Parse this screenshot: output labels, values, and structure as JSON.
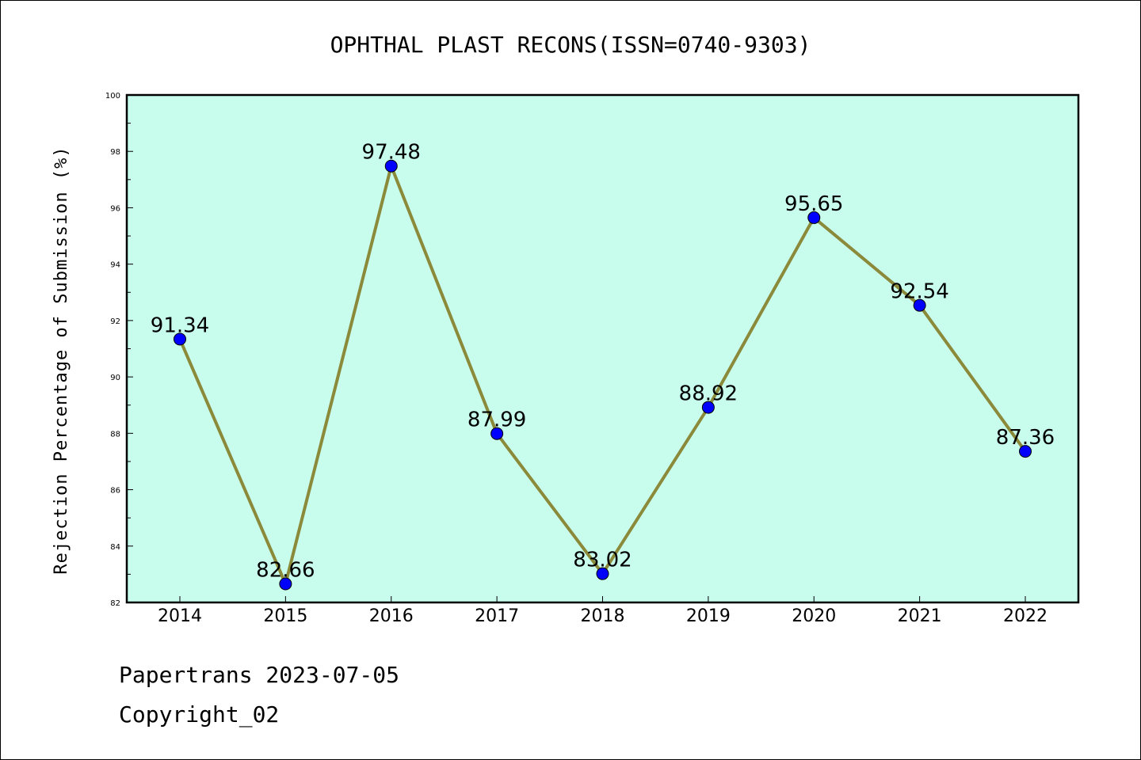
{
  "chart_data": {
    "type": "line",
    "title": "OPHTHAL PLAST RECONS(ISSN=0740-9303)",
    "xlabel": "",
    "ylabel": "Rejection Percentage of Submission (%)",
    "categories": [
      "2014",
      "2015",
      "2016",
      "2017",
      "2018",
      "2019",
      "2020",
      "2021",
      "2022"
    ],
    "series": [
      {
        "values": [
          91.34,
          82.66,
          97.48,
          87.99,
          83.02,
          88.92,
          95.65,
          92.54,
          87.36
        ]
      }
    ],
    "data_labels": [
      "91.34",
      "82.66",
      "97.48",
      "87.99",
      "83.02",
      "88.92",
      "95.65",
      "92.54",
      "87.36"
    ],
    "ylim": [
      82,
      100
    ],
    "yticks": [
      "82",
      "84",
      "86",
      "88",
      "90",
      "92",
      "94",
      "96",
      "98",
      "100"
    ],
    "grid": false,
    "legend": "none",
    "colors": {
      "plot_background": "#c8fcec",
      "line": "#8b8a3a",
      "marker": "#0000ff"
    }
  },
  "footer": {
    "source": "Papertrans 2023-07-05",
    "copyright": "Copyright_02"
  }
}
